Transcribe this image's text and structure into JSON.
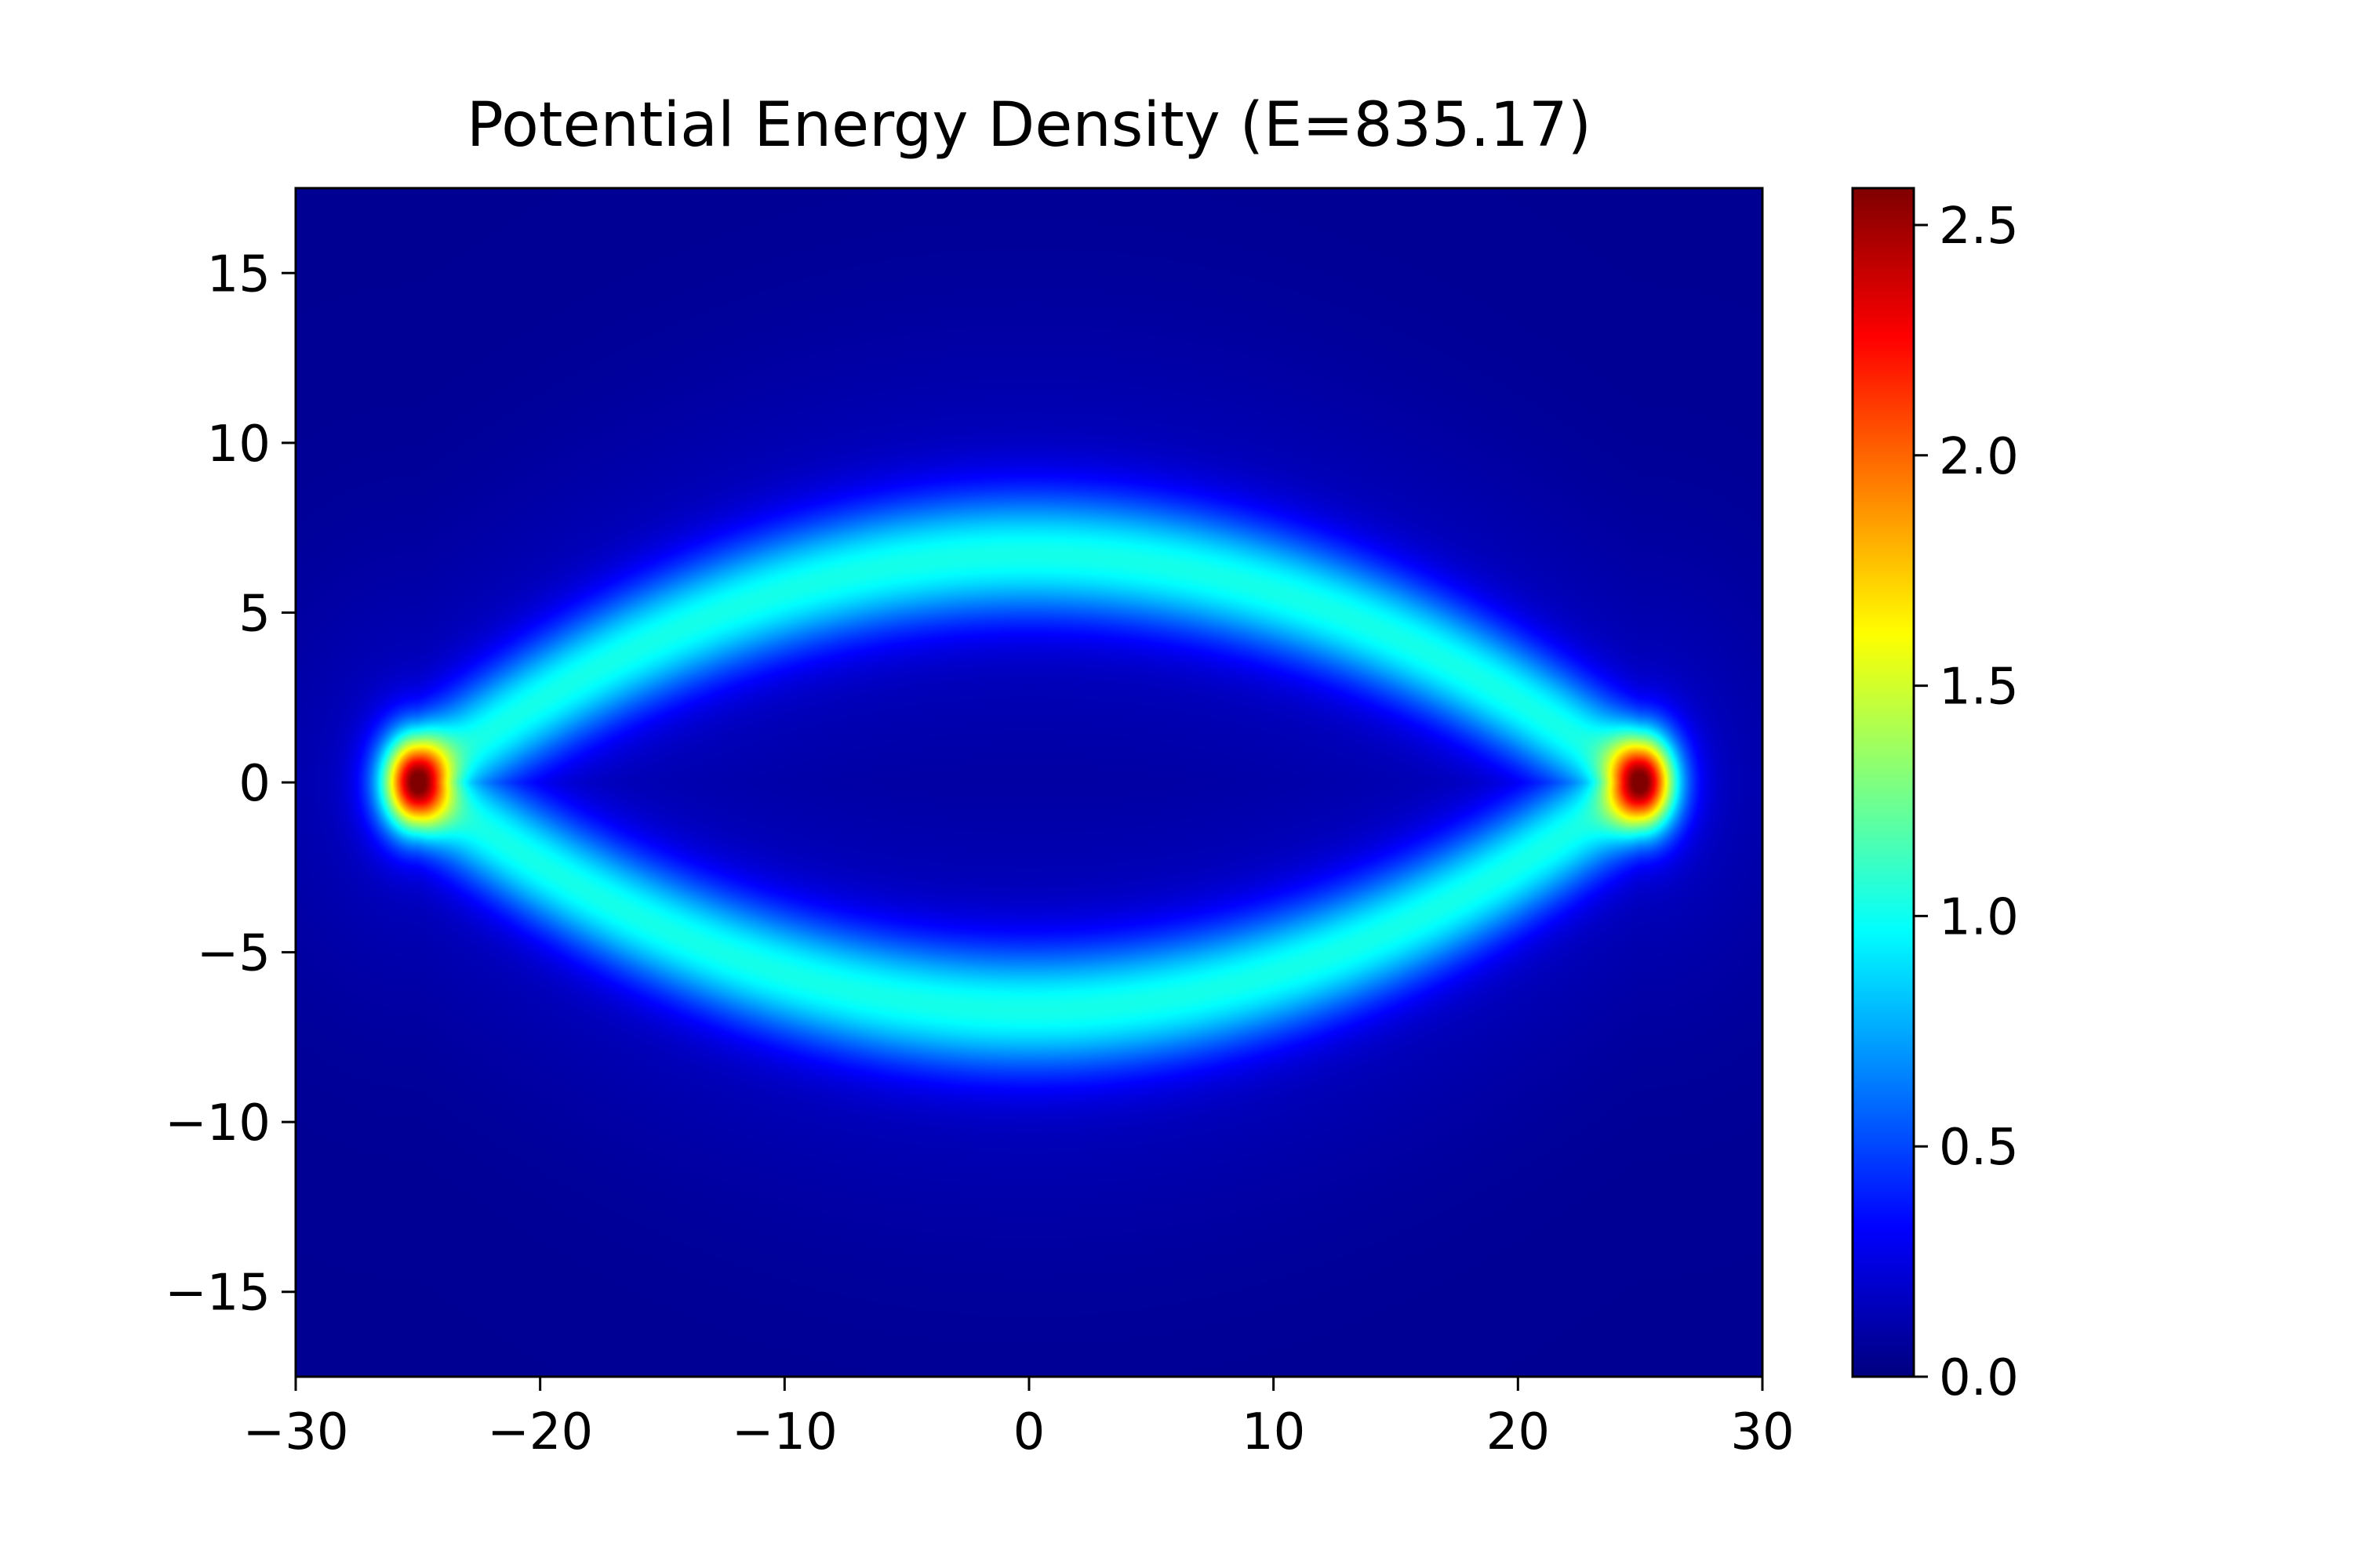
{
  "chart_data": {
    "type": "heatmap",
    "title": "Potential Energy Density (E=835.17)",
    "xlabel": "",
    "ylabel": "",
    "xlim": [
      -30,
      30
    ],
    "ylim": [
      -17.5,
      17.5
    ],
    "x_ticks": [
      {
        "value": -30,
        "label": "−30"
      },
      {
        "value": -20,
        "label": "−20"
      },
      {
        "value": -10,
        "label": "−10"
      },
      {
        "value": 0,
        "label": "0"
      },
      {
        "value": 10,
        "label": "10"
      },
      {
        "value": 20,
        "label": "20"
      },
      {
        "value": 30,
        "label": "30"
      }
    ],
    "y_ticks": [
      {
        "value": 15,
        "label": "15"
      },
      {
        "value": 10,
        "label": "10"
      },
      {
        "value": 5,
        "label": "5"
      },
      {
        "value": 0,
        "label": "0"
      },
      {
        "value": -5,
        "label": "−5"
      },
      {
        "value": -10,
        "label": "−10"
      },
      {
        "value": -15,
        "label": "−15"
      }
    ],
    "colormap": "jet",
    "colorbar": {
      "range": [
        0,
        2.58
      ],
      "ticks": [
        {
          "value": 0.0,
          "label": "0.0"
        },
        {
          "value": 0.5,
          "label": "0.5"
        },
        {
          "value": 1.0,
          "label": "1.0"
        },
        {
          "value": 1.5,
          "label": "1.5"
        },
        {
          "value": 2.0,
          "label": "2.0"
        },
        {
          "value": 2.5,
          "label": "2.5"
        }
      ]
    },
    "field": {
      "shape": "lens-shaped ring through x = ±25 at y = 0",
      "tips_x": [
        -25,
        25
      ],
      "arc_peak_y": 6.7,
      "ring_value": 0.85,
      "ring_width": 1.3,
      "tip_peak_value": 2.5,
      "background_value": 0.05
    },
    "grid": false,
    "legend": "none"
  }
}
